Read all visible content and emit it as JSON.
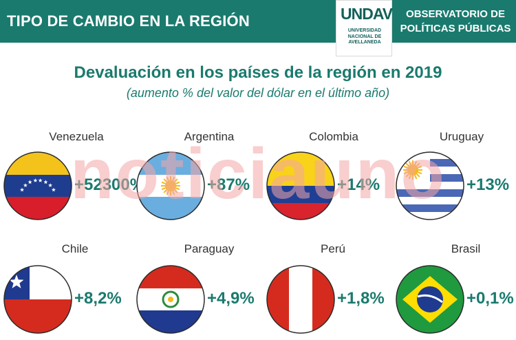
{
  "header": {
    "title": "TIPO DE CAMBIO EN LA REGIÓN",
    "logo_mark": "UNDAV",
    "logo_lines": [
      "UNIVERSIDAD",
      "NACIONAL DE",
      "AVELLANEDA"
    ],
    "observatorio_lines": [
      "OBSERVATORIO DE",
      "POLÍTICAS PÚBLICAS"
    ]
  },
  "watermark": "noticiauno",
  "colors": {
    "accent": "#1a7a6e",
    "watermark": "#f4a5a5"
  },
  "chart_data": {
    "type": "table",
    "title": "Devaluación en los países de la región en 2019",
    "subtitle": "(aumento % del valor del dólar en el último año)",
    "categories": [
      "Venezuela",
      "Argentina",
      "Colombia",
      "Uruguay",
      "Chile",
      "Paraguay",
      "Perú",
      "Brasil"
    ],
    "values": [
      52300,
      87,
      14,
      13,
      8.2,
      4.9,
      1.8,
      0.1
    ],
    "labels": [
      "+52300%",
      "+87%",
      "+14%",
      "+13%",
      "+8,2%",
      "+4,9%",
      "+1,8%",
      "+0,1%"
    ],
    "icons": [
      "venezuela-flag-icon",
      "argentina-flag-icon",
      "colombia-flag-icon",
      "uruguay-flag-icon",
      "chile-flag-icon",
      "paraguay-flag-icon",
      "peru-flag-icon",
      "brasil-flag-icon"
    ]
  }
}
